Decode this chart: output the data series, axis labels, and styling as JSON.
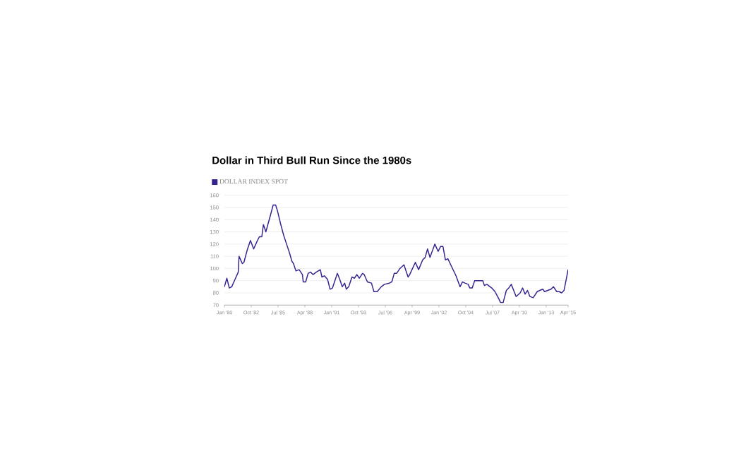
{
  "chart_data": {
    "type": "line",
    "title": "Dollar in Third Bull Run Since the 1980s",
    "x": [
      "1980-01",
      "1980-04",
      "1980-07",
      "1980-10",
      "1981-02",
      "1981-06",
      "1981-07",
      "1981-11",
      "1982-01",
      "1982-05",
      "1982-09",
      "1983-01",
      "1983-05",
      "1983-08",
      "1983-11",
      "1984-01",
      "1984-04",
      "1984-09",
      "1985-01",
      "1985-04",
      "1985-06",
      "1985-10",
      "1986-02",
      "1986-05",
      "1986-09",
      "1986-12",
      "1987-02",
      "1987-05",
      "1987-09",
      "1988-01",
      "1988-02",
      "1988-05",
      "1988-08",
      "1988-11",
      "1989-02",
      "1989-06",
      "1989-11",
      "1990-01",
      "1990-04",
      "1990-08",
      "1990-11",
      "1991-02",
      "1991-08",
      "1991-11",
      "1992-02",
      "1992-05",
      "1992-07",
      "1992-10",
      "1993-02",
      "1993-05",
      "1993-08",
      "1993-11",
      "1994-03",
      "1994-05",
      "1994-09",
      "1995-02",
      "1995-05",
      "1995-09",
      "1996-02",
      "1996-06",
      "1996-12",
      "1997-03",
      "1997-06",
      "1997-09",
      "1998-01",
      "1998-06",
      "1998-11",
      "1999-01",
      "1999-08",
      "1999-12",
      "2000-05",
      "2000-08",
      "2000-11",
      "2001-02",
      "2001-08",
      "2001-12",
      "2002-03",
      "2002-06",
      "2002-09",
      "2002-12",
      "2003-05",
      "2003-10",
      "2004-03",
      "2004-06",
      "2004-09",
      "2005-01",
      "2005-03",
      "2005-06",
      "2005-09",
      "2006-02",
      "2006-07",
      "2006-09",
      "2006-12",
      "2007-06",
      "2007-10",
      "2008-02",
      "2008-05",
      "2008-08",
      "2008-12",
      "2009-03",
      "2009-06",
      "2009-09",
      "2009-12",
      "2010-05",
      "2010-08",
      "2010-11",
      "2011-02",
      "2011-05",
      "2011-09",
      "2012-02",
      "2012-05",
      "2012-09",
      "2012-11",
      "2013-03",
      "2013-07",
      "2013-10",
      "2014-02",
      "2014-05",
      "2014-08",
      "2014-11",
      "2015-04"
    ],
    "series": [
      {
        "name": "DOLLAR INDEX SPOT",
        "color": "#35238f",
        "values": [
          85,
          92,
          84,
          85,
          91,
          97,
          110,
          104,
          105,
          115,
          123,
          116,
          122,
          126,
          126,
          136,
          130,
          142,
          152,
          152,
          148,
          137,
          127,
          121,
          113,
          106,
          104,
          98,
          99,
          95,
          89,
          89,
          96,
          97,
          95,
          97,
          99,
          93,
          94,
          91,
          83,
          84,
          96,
          91,
          85,
          88,
          83,
          85,
          93,
          92,
          95,
          92,
          96,
          95,
          89,
          88,
          81,
          81,
          85,
          87,
          88,
          89,
          96,
          96,
          100,
          103,
          93,
          95,
          105,
          99,
          107,
          109,
          116,
          109,
          120,
          114,
          118,
          118,
          107,
          108,
          101,
          94,
          85,
          89,
          88,
          87,
          84,
          84,
          90,
          90,
          90,
          86,
          87,
          84,
          81,
          76,
          72,
          72,
          82,
          84,
          87,
          82,
          77,
          80,
          84,
          79,
          82,
          77,
          76,
          81,
          82,
          83,
          81,
          82,
          83,
          85,
          81,
          81,
          80,
          82,
          99
        ]
      }
    ],
    "xlim": [
      "1980-01",
      "2015-04"
    ],
    "xticks": [
      {
        "value": "1980-01",
        "label": "Jan '80"
      },
      {
        "value": "1982-10",
        "label": "Oct '82"
      },
      {
        "value": "1985-07",
        "label": "Jul '85"
      },
      {
        "value": "1988-04",
        "label": "Apr '88"
      },
      {
        "value": "1991-01",
        "label": "Jan '91"
      },
      {
        "value": "1993-10",
        "label": "Oct '93"
      },
      {
        "value": "1996-07",
        "label": "Jul '96"
      },
      {
        "value": "1999-04",
        "label": "Apr '99"
      },
      {
        "value": "2002-01",
        "label": "Jan '02"
      },
      {
        "value": "2004-10",
        "label": "Oct '04"
      },
      {
        "value": "2007-07",
        "label": "Jul '07"
      },
      {
        "value": "2010-04",
        "label": "Apr '10"
      },
      {
        "value": "2013-01",
        "label": "Jan '13"
      },
      {
        "value": "2015-04",
        "label": "Apr '15"
      }
    ],
    "ylim": [
      70,
      160
    ],
    "yticks": [
      70,
      80,
      90,
      100,
      110,
      120,
      130,
      140,
      150,
      160
    ],
    "grid": "y",
    "legend": "top left",
    "line_style": "solid"
  }
}
